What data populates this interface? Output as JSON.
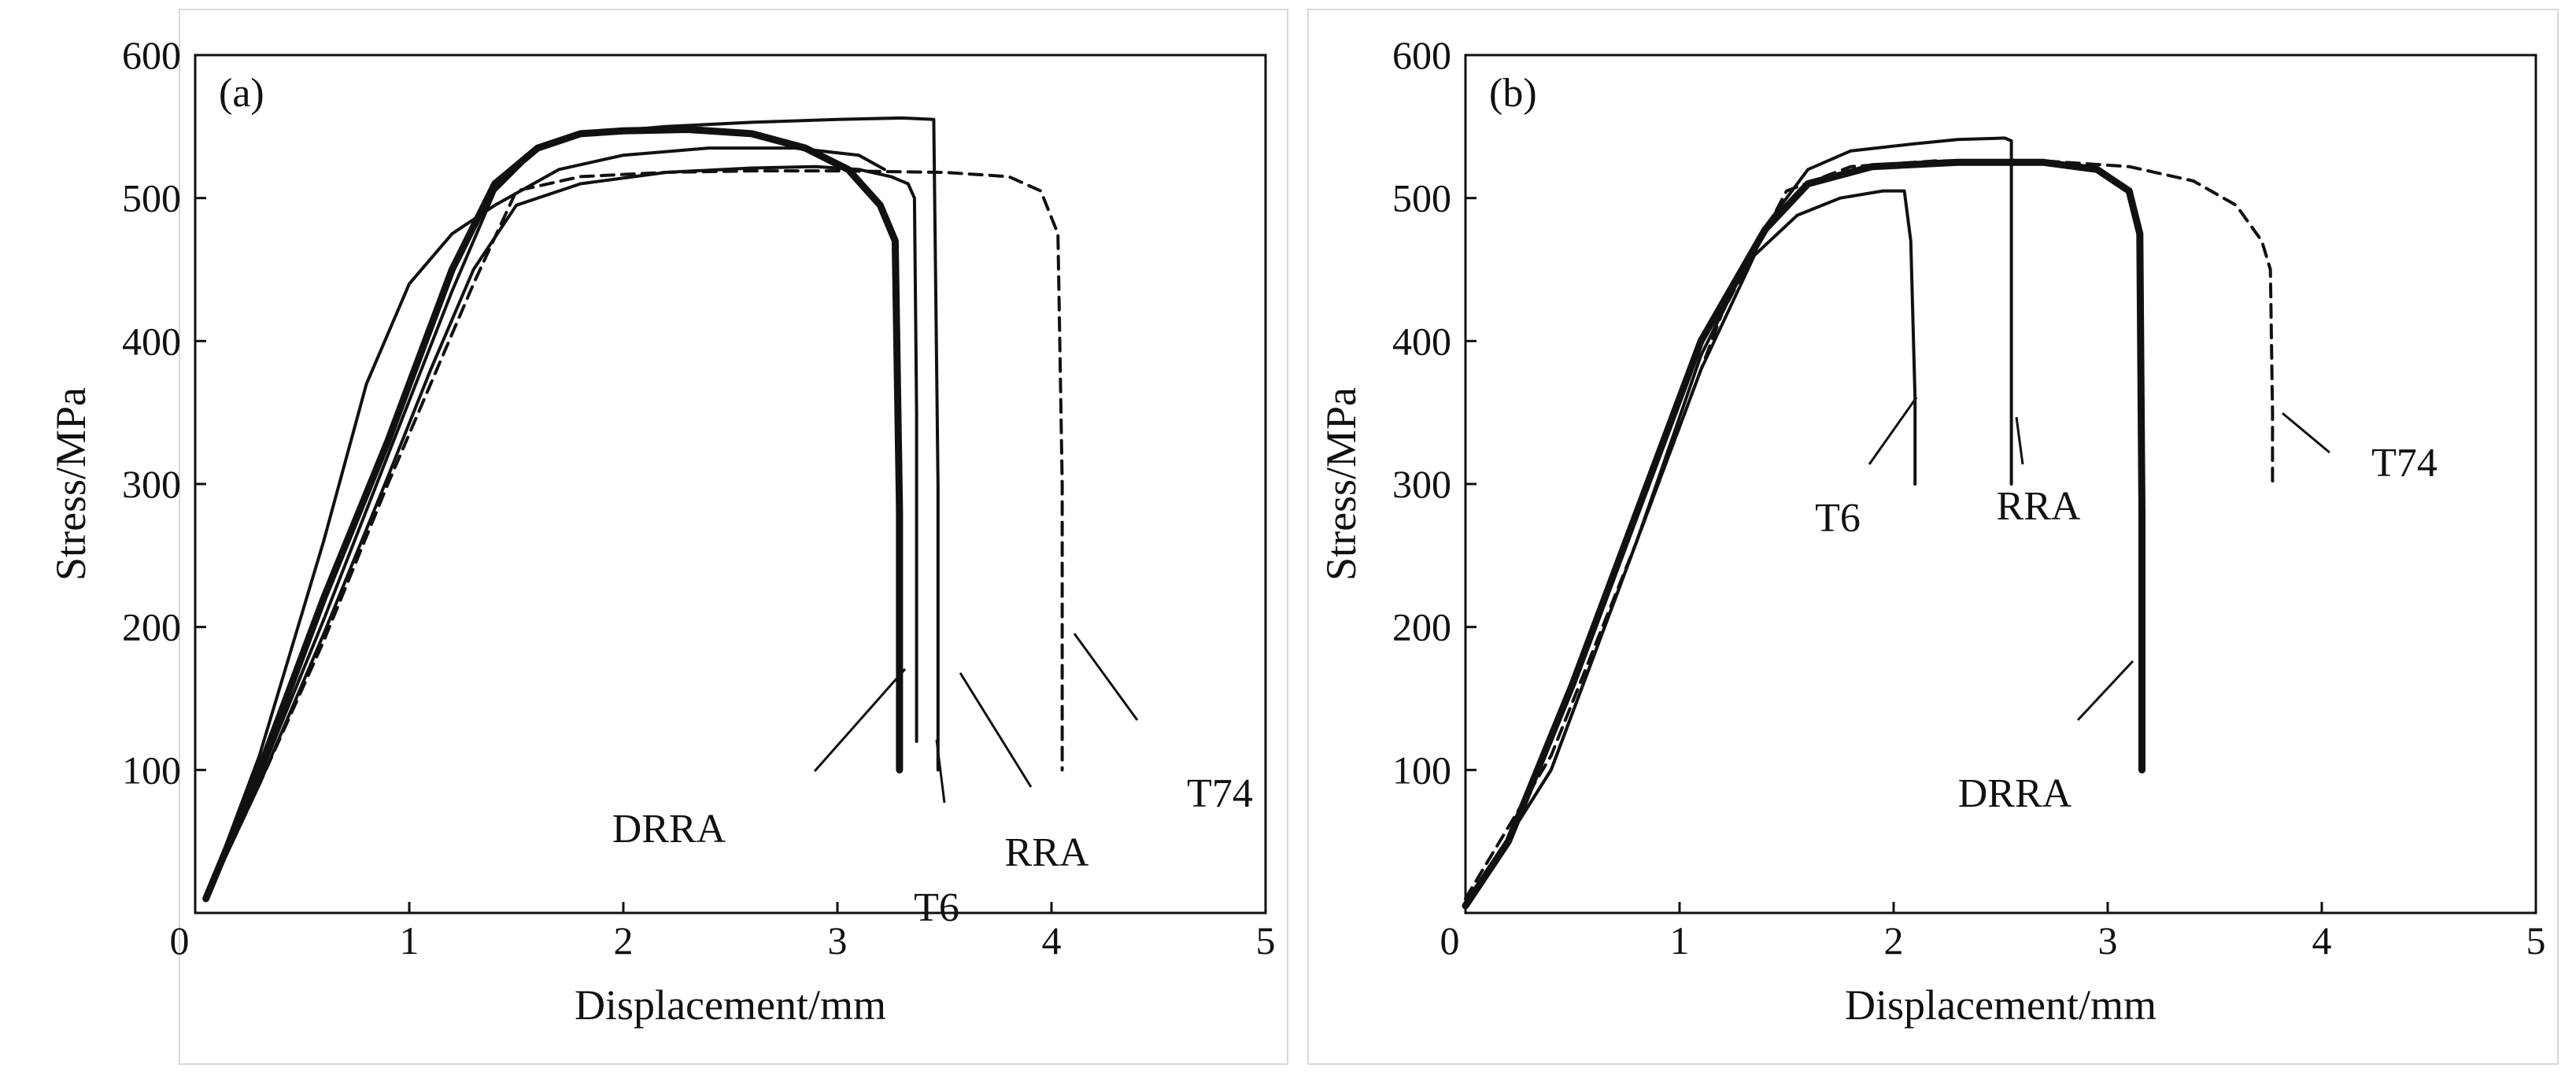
{
  "chart_data": [
    {
      "type": "line",
      "panel_label": "(a)",
      "xlabel": "Displacement/mm",
      "ylabel": "Stress/MPa",
      "xlim": [
        0,
        5
      ],
      "ylim": [
        0,
        600
      ],
      "x_ticks": [
        "0",
        "1",
        "2",
        "3",
        "4",
        "5"
      ],
      "y_ticks": [
        "100",
        "200",
        "300",
        "400",
        "500",
        "600"
      ],
      "grid": false,
      "series": [
        {
          "name": "T74",
          "style": "dashed",
          "x": [
            0.05,
            0.3,
            0.6,
            0.9,
            1.1,
            1.3,
            1.5,
            1.8,
            2.2,
            2.6,
            3.0,
            3.5,
            3.8,
            3.95,
            4.03,
            4.05,
            4.05
          ],
          "y": [
            10,
            90,
            190,
            300,
            370,
            440,
            505,
            515,
            518,
            519,
            519,
            518,
            515,
            505,
            475,
            300,
            100
          ]
        },
        {
          "name": "DRRA",
          "style": "thick",
          "x": [
            0.05,
            0.3,
            0.6,
            0.9,
            1.2,
            1.4,
            1.6,
            1.8,
            2.0,
            2.3,
            2.6,
            2.85,
            3.05,
            3.2,
            3.27,
            3.29,
            3.29
          ],
          "y": [
            10,
            100,
            220,
            330,
            450,
            510,
            535,
            545,
            547,
            548,
            545,
            535,
            520,
            495,
            470,
            280,
            100
          ]
        },
        {
          "name": "T6",
          "style": "solid",
          "x": [
            0.05,
            0.3,
            0.6,
            0.9,
            1.1,
            1.3,
            1.5,
            1.8,
            2.2,
            2.6,
            2.9,
            3.1,
            3.25,
            3.33,
            3.36,
            3.37,
            3.37
          ],
          "y": [
            10,
            90,
            195,
            305,
            380,
            450,
            495,
            510,
            518,
            521,
            522,
            520,
            515,
            510,
            500,
            350,
            120
          ]
        },
        {
          "name": "RRA",
          "style": "solid",
          "x": [
            0.05,
            0.3,
            0.6,
            0.9,
            1.2,
            1.4,
            1.6,
            1.8,
            2.2,
            2.6,
            3.0,
            3.3,
            3.45,
            3.47,
            3.47
          ],
          "y": [
            10,
            95,
            205,
            320,
            435,
            505,
            535,
            545,
            550,
            553,
            555,
            556,
            555,
            300,
            100
          ]
        },
        {
          "name": "",
          "style": "solid",
          "x": [
            0.05,
            0.3,
            0.6,
            0.8,
            1.0,
            1.2,
            1.4,
            1.7,
            2.0,
            2.4,
            2.8,
            3.1,
            3.22
          ],
          "y": [
            10,
            110,
            260,
            370,
            440,
            475,
            495,
            520,
            530,
            535,
            535,
            530,
            520
          ]
        }
      ],
      "annotations": [
        {
          "text": "DRRA",
          "x": 3.27,
          "y": 165
        },
        {
          "text": "T6",
          "x": 3.36,
          "y": 120
        },
        {
          "text": "RRA",
          "x": 3.48,
          "y": 165
        },
        {
          "text": "T74",
          "x": 4.05,
          "y": 205
        }
      ]
    },
    {
      "type": "line",
      "panel_label": "(b)",
      "xlabel": "Displacement/mm",
      "ylabel": "Stress/MPa",
      "xlim": [
        0,
        5
      ],
      "ylim": [
        0,
        600
      ],
      "x_ticks": [
        "0",
        "1",
        "2",
        "3",
        "4",
        "5"
      ],
      "y_ticks": [
        "100",
        "200",
        "300",
        "400",
        "500",
        "600"
      ],
      "grid": false,
      "series": [
        {
          "name": "T74",
          "style": "dashed",
          "x": [
            0.0,
            0.4,
            0.8,
            1.2,
            1.5,
            1.8,
            2.2,
            2.7,
            3.1,
            3.4,
            3.6,
            3.72,
            3.76,
            3.77,
            3.77
          ],
          "y": [
            10,
            110,
            260,
            420,
            505,
            522,
            526,
            526,
            522,
            512,
            495,
            470,
            450,
            350,
            300
          ]
        },
        {
          "name": "T6",
          "style": "solid",
          "x": [
            0.0,
            0.4,
            0.8,
            1.1,
            1.35,
            1.55,
            1.75,
            1.95,
            2.05,
            2.08,
            2.1,
            2.1
          ],
          "y": [
            5,
            100,
            260,
            380,
            460,
            488,
            500,
            505,
            505,
            470,
            360,
            300
          ]
        },
        {
          "name": "RRA",
          "style": "solid",
          "x": [
            0.0,
            0.4,
            0.8,
            1.1,
            1.4,
            1.6,
            1.8,
            2.1,
            2.3,
            2.52,
            2.55,
            2.55
          ],
          "y": [
            5,
            100,
            260,
            390,
            480,
            520,
            533,
            538,
            541,
            542,
            540,
            300
          ]
        },
        {
          "name": "DRRA",
          "style": "thick",
          "x": [
            0.0,
            0.2,
            0.5,
            0.8,
            1.1,
            1.4,
            1.6,
            1.9,
            2.3,
            2.7,
            2.95,
            3.1,
            3.15,
            3.16,
            3.16
          ],
          "y": [
            5,
            50,
            160,
            280,
            400,
            478,
            510,
            522,
            525,
            525,
            520,
            505,
            475,
            280,
            100
          ]
        }
      ],
      "annotations": [
        {
          "text": "T6",
          "x": 2.08,
          "y": 355
        },
        {
          "text": "RRA",
          "x": 2.55,
          "y": 345
        },
        {
          "text": "DRRA",
          "x": 3.15,
          "y": 185
        },
        {
          "text": "T74",
          "x": 3.77,
          "y": 350
        }
      ]
    }
  ]
}
